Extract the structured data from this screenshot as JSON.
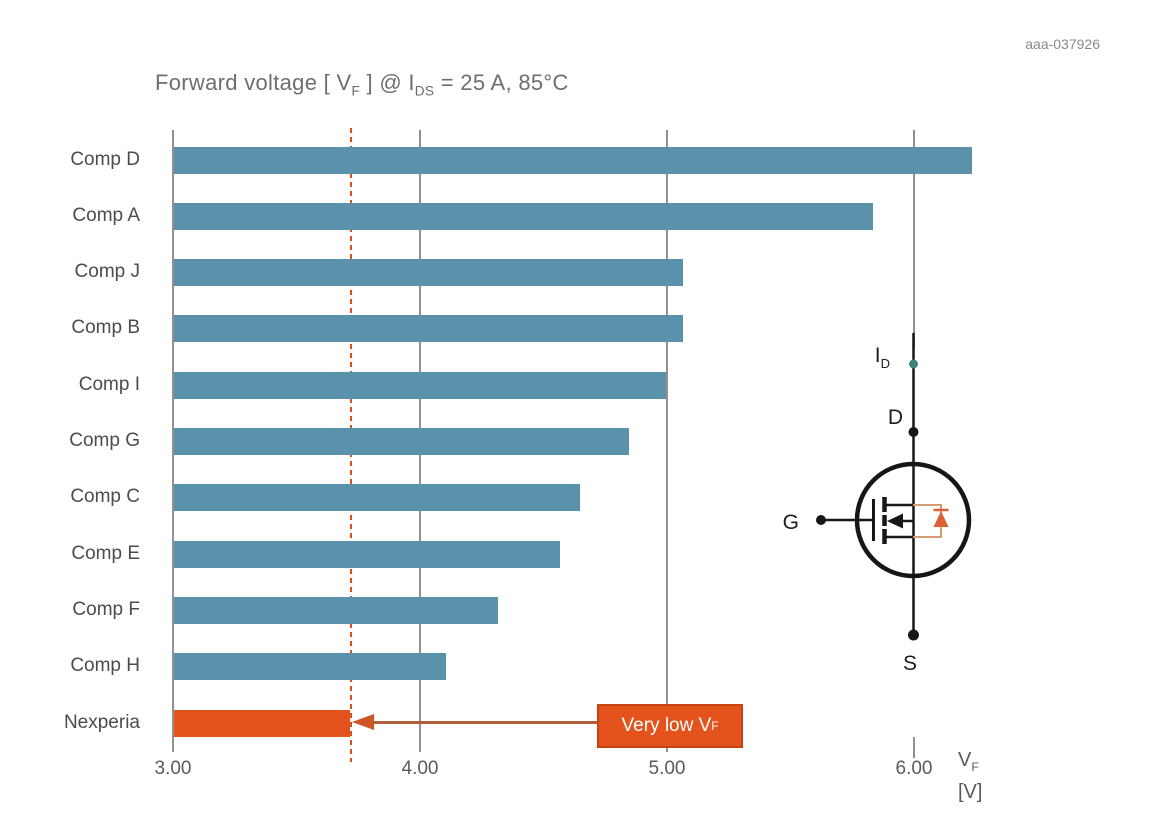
{
  "doc_id": "aaa-037926",
  "title": {
    "prefix": "Forward voltage [ V",
    "sub1": "F",
    "mid": " ] @ I",
    "sub2": "DS",
    "suffix": " = 25 A, 85°C"
  },
  "chart_data": {
    "type": "bar",
    "orientation": "horizontal",
    "title": "Forward voltage [ VF ] @ IDS = 25 A, 85°C",
    "categories": [
      "Comp D",
      "Comp A",
      "Comp J",
      "Comp B",
      "Comp I",
      "Comp G",
      "Comp C",
      "Comp E",
      "Comp F",
      "Comp H",
      "Nexperia"
    ],
    "values": [
      6.24,
      5.84,
      5.07,
      5.07,
      5.0,
      4.85,
      4.65,
      4.57,
      4.32,
      4.11,
      3.72
    ],
    "xlabel": "VF [V]",
    "x_ticks": [
      "3.00",
      "4.00",
      "5.00",
      "6.00"
    ],
    "x_tick_values": [
      3,
      4,
      5,
      6
    ],
    "xlim": [
      3.0,
      6.3
    ],
    "grid": "vertical-lines",
    "reference_line_x": 3.72,
    "highlight_category": "Nexperia",
    "annotation": {
      "text_prefix": "Very low V",
      "sub": "F",
      "target": "Nexperia bar end"
    }
  },
  "axis_unit": {
    "main": "V",
    "sub": "F",
    "unit": "[V]"
  },
  "mosfet": {
    "current_main": "I",
    "current_sub": "D",
    "drain": "D",
    "gate": "G",
    "source": "S"
  },
  "colors": {
    "bar_blue": "#5b92ab",
    "accent_orange": "#e4531b",
    "annotation_border": "#c5430f",
    "grid_gray": "#919191",
    "dashed_ref": "#da501f",
    "arrow_line": "#b05f3a",
    "arrow_head": "#cf5526",
    "teal_dot": "#3e8577",
    "diode_orange": "#dd6136",
    "diode_loop": "#d89a72",
    "symbol_black": "#161615",
    "text_gray": "#5a5a5a"
  }
}
